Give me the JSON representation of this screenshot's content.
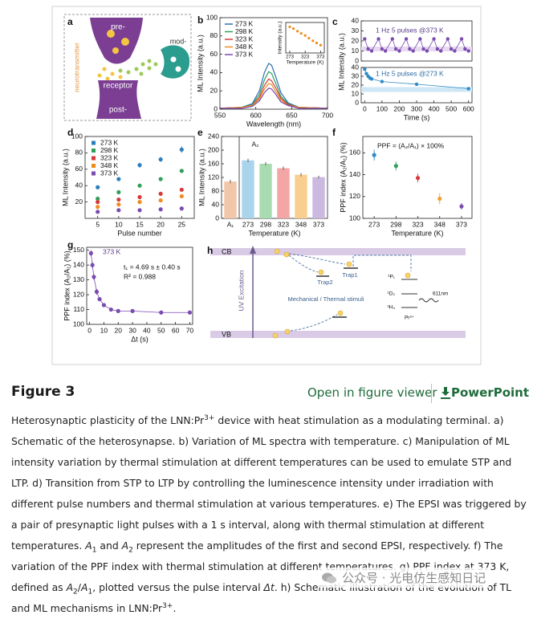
{
  "panel_labels": [
    "a",
    "b",
    "c",
    "d",
    "e",
    "f",
    "g",
    "h"
  ],
  "schematic_a": {
    "pre": "pre-",
    "neurotransmitter": "neurotransmitter",
    "receptor": "receptor",
    "post": "post-",
    "mod": "mod-"
  },
  "chart_data": [
    {
      "type": "line",
      "xlabel": "Wavelength (nm)",
      "ylabel": "ML Intensity (a.u.)",
      "xlim": [
        550,
        700
      ],
      "ylim": [
        0,
        100
      ],
      "xticks": [
        550,
        600,
        650,
        700
      ],
      "yticks": [
        0,
        20,
        40,
        60,
        80,
        100
      ],
      "legend": "upper left",
      "x": [
        550,
        580,
        595,
        605,
        612,
        618,
        622,
        628,
        635,
        645,
        660,
        700
      ],
      "series": [
        {
          "name": "273 K",
          "color": "#2e6db4",
          "values": [
            1,
            2,
            6,
            20,
            40,
            50,
            48,
            35,
            18,
            7,
            2,
            1
          ]
        },
        {
          "name": "298 K",
          "color": "#2fa05a",
          "values": [
            1,
            2,
            5,
            16,
            32,
            41,
            39,
            28,
            14,
            6,
            2,
            1
          ]
        },
        {
          "name": "323 K",
          "color": "#d63b3b",
          "values": [
            1,
            2,
            4,
            13,
            26,
            33,
            31,
            23,
            12,
            5,
            2,
            1
          ]
        },
        {
          "name": "348 K",
          "color": "#f08c1e",
          "values": [
            1,
            2,
            4,
            11,
            22,
            28,
            27,
            19,
            10,
            4,
            2,
            1
          ]
        },
        {
          "name": "373 K",
          "color": "#7b4bb0",
          "values": [
            1,
            1,
            3,
            9,
            18,
            23,
            22,
            16,
            8,
            4,
            1,
            1
          ]
        }
      ]
    },
    {
      "type": "scatter",
      "xlabel": "Temperature (K)",
      "ylabel": "Intensity (a.u.)",
      "xlim": [
        260,
        385
      ],
      "ylim": [
        40,
        110
      ],
      "xticks": [
        273,
        323,
        373
      ],
      "color": "#f08c1e",
      "x": [
        273,
        285,
        298,
        310,
        323,
        335,
        348,
        360,
        373
      ],
      "values": [
        100,
        96,
        90,
        85,
        80,
        74,
        68,
        63,
        58
      ]
    },
    {
      "type": "line",
      "markers": true,
      "annotations": [
        "1 Hz 5 pulses   @373 K"
      ],
      "xlim": [
        -20,
        620
      ],
      "ylim": [
        0,
        40
      ],
      "yticks": [
        0,
        10,
        20,
        30,
        40
      ],
      "bands": [
        12
      ],
      "x": [
        0,
        20,
        40,
        80,
        100,
        120,
        160,
        180,
        200,
        240,
        260,
        280,
        320,
        340,
        360,
        400,
        420,
        440,
        480,
        500,
        520,
        560,
        580,
        600
      ],
      "series": [
        {
          "color": "#7b4bb0",
          "values": [
            22,
            12,
            10,
            22,
            12,
            10,
            22,
            12,
            10,
            22,
            12,
            10,
            22,
            12,
            10,
            22,
            12,
            10,
            22,
            12,
            10,
            22,
            12,
            10
          ]
        }
      ]
    },
    {
      "type": "line",
      "markers": true,
      "annotations": [
        "1 Hz 5 pulses   @273 K"
      ],
      "xlabel": "Time (s)",
      "ylabel": "ML Intensity (a.u.)",
      "xlim": [
        -20,
        620
      ],
      "ylim": [
        0,
        40
      ],
      "xticks": [
        0,
        100,
        200,
        300,
        400,
        500,
        600
      ],
      "yticks": [
        0,
        10,
        20,
        30,
        40
      ],
      "bands": [
        15
      ],
      "x": [
        0,
        10,
        20,
        30,
        40,
        100,
        300,
        600
      ],
      "series": [
        {
          "color": "#2e8bc8",
          "values": [
            38,
            33,
            30,
            28,
            27,
            24,
            21,
            16
          ]
        }
      ]
    },
    {
      "type": "errorbar",
      "xlabel": "Pulse number",
      "ylabel": "ML Intensity (a.u.)",
      "xlim": [
        2,
        28
      ],
      "ylim": [
        0,
        100
      ],
      "xticks": [
        5,
        10,
        15,
        20,
        25
      ],
      "yticks": [
        20,
        40,
        60,
        80,
        100
      ],
      "legend": "upper left",
      "x": [
        5,
        10,
        15,
        20,
        25
      ],
      "series": [
        {
          "name": "273 K",
          "color": "#2a7fbf",
          "values": [
            38,
            48,
            65,
            72,
            84
          ],
          "errors": [
            2,
            2,
            3,
            3,
            4
          ]
        },
        {
          "name": "298 K",
          "color": "#2fa05a",
          "values": [
            24,
            32,
            40,
            48,
            58
          ],
          "errors": [
            2,
            2,
            2,
            2,
            2
          ]
        },
        {
          "name": "323 K",
          "color": "#d63b3b",
          "values": [
            20,
            23,
            26,
            30,
            35
          ],
          "errors": [
            2,
            2,
            2,
            2,
            2
          ]
        },
        {
          "name": "348 K",
          "color": "#f08c1e",
          "values": [
            14,
            17,
            20,
            22,
            27
          ],
          "errors": [
            2,
            2,
            2,
            2,
            2
          ]
        },
        {
          "name": "373 K",
          "color": "#7b4bb0",
          "values": [
            8,
            10,
            10,
            11,
            12
          ],
          "errors": [
            1,
            1,
            1,
            1,
            1
          ]
        }
      ]
    },
    {
      "type": "bar",
      "xlabel": "Temperature (K)",
      "ylabel": "ML Intensity (a.u.)",
      "annotations": [
        "A₂"
      ],
      "ylim": [
        0,
        240
      ],
      "yticks": [
        0,
        40,
        80,
        120,
        160,
        200,
        240
      ],
      "categories": [
        "A₁",
        "273",
        "298",
        "323",
        "348",
        "373"
      ],
      "values": [
        108,
        170,
        160,
        147,
        128,
        121
      ],
      "errors": [
        5,
        5,
        5,
        5,
        5,
        4
      ],
      "colors": [
        "#f2c6a8",
        "#a9d4ec",
        "#a8dcb0",
        "#f4a5a5",
        "#f8cf8f",
        "#cbb9e0"
      ]
    },
    {
      "type": "errorbar",
      "xlabel": "Temperature (K)",
      "ylabel": "PPF index (A₂/A₁) (%)",
      "annotations": [
        "PPF = (A₂/A₁) × 100%"
      ],
      "xlim": [
        260,
        385
      ],
      "ylim": [
        100,
        175
      ],
      "xticks": [
        273,
        298,
        323,
        348,
        373
      ],
      "yticks": [
        100,
        120,
        140,
        160
      ],
      "x": [
        273,
        298,
        323,
        348,
        373
      ],
      "series": [
        {
          "colors": [
            "#2e8bc8",
            "#2fa05a",
            "#d63b3b",
            "#f0a030",
            "#7b4bb0"
          ],
          "values": [
            158,
            148,
            137,
            118,
            111
          ],
          "errors": [
            5,
            4,
            4,
            5,
            3
          ]
        }
      ]
    },
    {
      "type": "errorbar",
      "connect": true,
      "xlabel": "Δt (s)",
      "ylabel": "PPF index (A₂/A₁) (%)",
      "annotations": [
        "373 K",
        "t₁ = 4.69 s ± 0.40 s",
        "R² = 0.988"
      ],
      "xlim": [
        -2,
        72
      ],
      "ylim": [
        100,
        152
      ],
      "xticks": [
        0,
        10,
        20,
        30,
        40,
        50,
        60,
        70
      ],
      "yticks": [
        100,
        110,
        120,
        130,
        140,
        150
      ],
      "x": [
        1,
        2,
        3,
        5,
        7,
        10,
        15,
        20,
        30,
        50,
        70
      ],
      "series": [
        {
          "color": "#7b4bb0",
          "values": [
            148,
            140,
            132,
            122,
            117,
            113,
            110,
            109,
            109,
            108,
            108
          ],
          "errors": [
            2,
            2,
            2,
            2,
            1,
            1,
            1,
            1,
            1,
            1,
            1
          ]
        }
      ]
    }
  ],
  "diagram_h": {
    "cb": "CB",
    "vb": "VB",
    "uv": "UV Excitation",
    "trap1": "Trap1",
    "trap2": "Trap2",
    "stimuli": "Mechanical / Thermal stimuli",
    "levels": [
      "³P₁",
      "¹D₂",
      "³H₄"
    ],
    "ion": "Pr³⁺",
    "emission": "611nm"
  },
  "figure_header": {
    "title": "Figure 3",
    "viewer_link": "Open in figure viewer",
    "download_link": "PowerPoint"
  },
  "caption": [
    {
      "text": "Heterosynaptic plasticity of the LNN:Pr"
    },
    {
      "sup": "3+"
    },
    {
      "text": " device with heat stimulation as a modulating terminal. a) Schematic of the heterosynapse. b) Variation of ML spectra with temperature. c) Manipulation of ML intensity variation by thermal stimulation at different temperatures can be used to emulate STP and LTP. d) Transition from STP to LTP by controlling the luminescence intensity under irradiation with different pulse numbers and thermal stimulation at various temperatures. e) The EPSI was triggered by a pair of presynaptic light pulses with a 1 s interval, along with thermal stimulation at different temperatures. "
    },
    {
      "i": "A"
    },
    {
      "sub": "1"
    },
    {
      "text": " and "
    },
    {
      "i": "A"
    },
    {
      "sub": "2"
    },
    {
      "text": " represent the amplitudes of the first and second EPSI, respectively. f) The variation of the PPF index with thermal stimulation at different temperatures. g) PPF index at 373 K, defined as "
    },
    {
      "i": "A"
    },
    {
      "sub": "2"
    },
    {
      "text": "/"
    },
    {
      "i": "A"
    },
    {
      "sub": "1"
    },
    {
      "text": ", plotted versus the pulse interval "
    },
    {
      "i": "Δt"
    },
    {
      "text": ". h) Schematic illustration of the evolution of TL and ML mechanisms in LNN:Pr"
    },
    {
      "sup": "3+"
    },
    {
      "text": "."
    }
  ],
  "watermark": "公众号 · 光电仿生感知日记"
}
